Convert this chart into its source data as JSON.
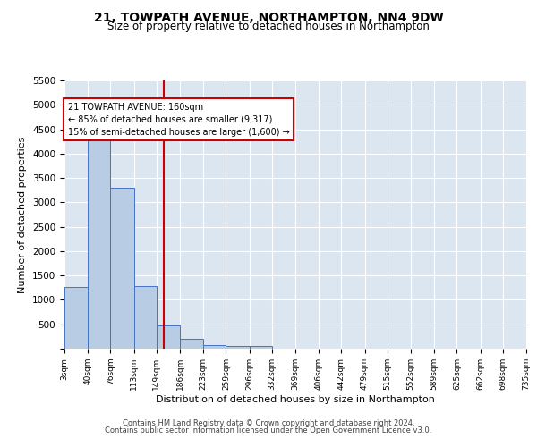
{
  "title": "21, TOWPATH AVENUE, NORTHAMPTON, NN4 9DW",
  "subtitle": "Size of property relative to detached houses in Northampton",
  "xlabel": "Distribution of detached houses by size in Northampton",
  "ylabel": "Number of detached properties",
  "footnote1": "Contains HM Land Registry data © Crown copyright and database right 2024.",
  "footnote2": "Contains public sector information licensed under the Open Government Licence v3.0.",
  "annotation_title": "21 TOWPATH AVENUE: 160sqm",
  "annotation_line1": "← 85% of detached houses are smaller (9,317)",
  "annotation_line2": "15% of semi-detached houses are larger (1,600) →",
  "property_size": 160,
  "bin_edges": [
    3,
    40,
    76,
    113,
    149,
    186,
    223,
    259,
    296,
    332,
    369,
    406,
    442,
    479,
    515,
    552,
    589,
    625,
    662,
    698,
    735
  ],
  "bar_heights": [
    1260,
    4330,
    3300,
    1280,
    480,
    210,
    80,
    60,
    50,
    0,
    0,
    0,
    0,
    0,
    0,
    0,
    0,
    0,
    0,
    0
  ],
  "bar_color": "#b8cce4",
  "bar_edge_color": "#4472c4",
  "vline_color": "#cc0000",
  "vline_x": 160,
  "annotation_box_color": "#cc0000",
  "background_color": "#dce6f1",
  "ylim": [
    0,
    5500
  ],
  "yticks": [
    0,
    500,
    1000,
    1500,
    2000,
    2500,
    3000,
    3500,
    4000,
    4500,
    5000,
    5500
  ],
  "tick_labels": [
    "3sqm",
    "40sqm",
    "76sqm",
    "113sqm",
    "149sqm",
    "186sqm",
    "223sqm",
    "259sqm",
    "296sqm",
    "332sqm",
    "369sqm",
    "406sqm",
    "442sqm",
    "479sqm",
    "515sqm",
    "552sqm",
    "589sqm",
    "625sqm",
    "662sqm",
    "698sqm",
    "735sqm"
  ]
}
